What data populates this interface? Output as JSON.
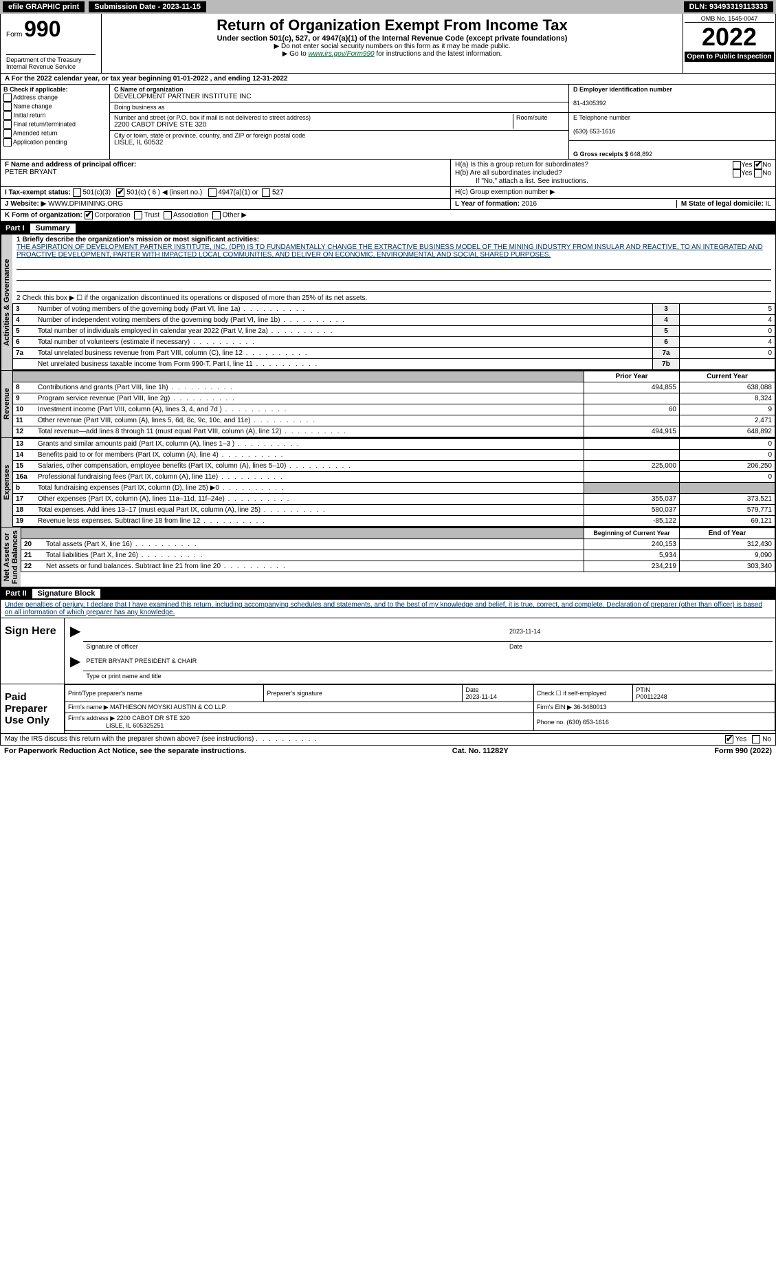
{
  "topbar": {
    "efile": "efile GRAPHIC print",
    "submission_label": "Submission Date - 2023-11-15",
    "dln": "DLN: 93493319113333"
  },
  "header": {
    "form_prefix": "Form",
    "form_number": "990",
    "title": "Return of Organization Exempt From Income Tax",
    "subtitle": "Under section 501(c), 527, or 4947(a)(1) of the Internal Revenue Code (except private foundations)",
    "note1": "▶ Do not enter social security numbers on this form as it may be made public.",
    "note2_prefix": "▶ Go to ",
    "note2_link": "www.irs.gov/Form990",
    "note2_suffix": " for instructions and the latest information.",
    "dept": "Department of the Treasury\nInternal Revenue Service",
    "omb": "OMB No. 1545-0047",
    "year": "2022",
    "open_inspection": "Open to Public Inspection"
  },
  "row_a": "A For the 2022 calendar year, or tax year beginning 01-01-2022    , and ending 12-31-2022",
  "col_b": {
    "header": "B Check if applicable:",
    "items": [
      "Address change",
      "Name change",
      "Initial return",
      "Final return/terminated",
      "Amended return",
      "Application pending"
    ]
  },
  "section_c": {
    "name_label": "C Name of organization",
    "name": "DEVELOPMENT PARTNER INSTITUTE INC",
    "dba_label": "Doing business as",
    "dba": "",
    "addr_label": "Number and street (or P.O. box if mail is not delivered to street address)",
    "room_label": "Room/suite",
    "addr": "2200 CABOT DRIVE STE 320",
    "city_label": "City or town, state or province, country, and ZIP or foreign postal code",
    "city": "LISLE, IL  60532"
  },
  "section_d": {
    "ein_label": "D Employer identification number",
    "ein": "81-4305392",
    "phone_label": "E Telephone number",
    "phone": "(630) 653-1616",
    "gross_label": "G Gross receipts $",
    "gross": "648,892"
  },
  "section_f": {
    "label": "F  Name and address of principal officer:",
    "name": "PETER BRYANT"
  },
  "section_h": {
    "a": "H(a)  Is this a group return for subordinates?",
    "b": "H(b)  Are all subordinates included?",
    "b_note": "If \"No,\" attach a list. See instructions.",
    "c": "H(c)  Group exemption number ▶",
    "yes": "Yes",
    "no": "No"
  },
  "section_i": {
    "label": "I   Tax-exempt status:",
    "opts": [
      "501(c)(3)",
      "501(c) ( 6 ) ◀ (insert no.)",
      "4947(a)(1) or",
      "527"
    ]
  },
  "section_j": {
    "label": "J   Website: ▶",
    "value": "WWW.DPIMINING.ORG"
  },
  "section_k": {
    "label": "K Form of organization:",
    "opts": [
      "Corporation",
      "Trust",
      "Association",
      "Other ▶"
    ]
  },
  "section_l": {
    "label": "L Year of formation:",
    "value": "2016"
  },
  "section_m": {
    "label": "M State of legal domicile:",
    "value": "IL"
  },
  "part1": {
    "title": "Part I",
    "subtitle": "Summary"
  },
  "summary": {
    "line1_label": "1  Briefly describe the organization's mission or most significant activities:",
    "line1_text": "THE ASPIRATION OF DEVELOPMENT PARTNER INSTITUTE, INC. (DPI) IS TO FUNDAMENTALLY CHANGE THE EXTRACTIVE BUSINESS MODEL OF THE MINING INDUSTRY FROM INSULAR AND REACTIVE, TO AN INTEGRATED AND PROACTIVE DEVELOPMENT, PARTER WITH IMPACTED LOCAL COMMUNITIES, AND DELIVER ON ECONOMIC, ENVIRONMENTAL AND SOCIAL SHARED PURPOSES.",
    "line2": "2    Check this box ▶ ☐  if the organization discontinued its operations or disposed of more than 25% of its net assets.",
    "rows_ag": [
      {
        "n": "3",
        "desc": "Number of voting members of the governing body (Part VI, line 1a)",
        "box": "3",
        "val": "5"
      },
      {
        "n": "4",
        "desc": "Number of independent voting members of the governing body (Part VI, line 1b)",
        "box": "4",
        "val": "4"
      },
      {
        "n": "5",
        "desc": "Total number of individuals employed in calendar year 2022 (Part V, line 2a)",
        "box": "5",
        "val": "0"
      },
      {
        "n": "6",
        "desc": "Total number of volunteers (estimate if necessary)",
        "box": "6",
        "val": "4"
      },
      {
        "n": "7a",
        "desc": "Total unrelated business revenue from Part VIII, column (C), line 12",
        "box": "7a",
        "val": "0"
      },
      {
        "n": "",
        "desc": "Net unrelated business taxable income from Form 990-T, Part I, line 11",
        "box": "7b",
        "val": ""
      }
    ],
    "col_headers": {
      "prior": "Prior Year",
      "current": "Current Year"
    },
    "revenue_label": "Revenue",
    "revenue": [
      {
        "n": "8",
        "desc": "Contributions and grants (Part VIII, line 1h)",
        "prior": "494,855",
        "curr": "638,088"
      },
      {
        "n": "9",
        "desc": "Program service revenue (Part VIII, line 2g)",
        "prior": "",
        "curr": "8,324"
      },
      {
        "n": "10",
        "desc": "Investment income (Part VIII, column (A), lines 3, 4, and 7d )",
        "prior": "60",
        "curr": "9"
      },
      {
        "n": "11",
        "desc": "Other revenue (Part VIII, column (A), lines 5, 6d, 8c, 9c, 10c, and 11e)",
        "prior": "",
        "curr": "2,471"
      },
      {
        "n": "12",
        "desc": "Total revenue—add lines 8 through 11 (must equal Part VIII, column (A), line 12)",
        "prior": "494,915",
        "curr": "648,892"
      }
    ],
    "expenses_label": "Expenses",
    "expenses": [
      {
        "n": "13",
        "desc": "Grants and similar amounts paid (Part IX, column (A), lines 1–3 )",
        "prior": "",
        "curr": "0"
      },
      {
        "n": "14",
        "desc": "Benefits paid to or for members (Part IX, column (A), line 4)",
        "prior": "",
        "curr": "0"
      },
      {
        "n": "15",
        "desc": "Salaries, other compensation, employee benefits (Part IX, column (A), lines 5–10)",
        "prior": "225,000",
        "curr": "206,250"
      },
      {
        "n": "16a",
        "desc": "Professional fundraising fees (Part IX, column (A), line 11e)",
        "prior": "",
        "curr": "0"
      },
      {
        "n": "b",
        "desc": "Total fundraising expenses (Part IX, column (D), line 25) ▶0",
        "prior": "shaded",
        "curr": "shaded"
      },
      {
        "n": "17",
        "desc": "Other expenses (Part IX, column (A), lines 11a–11d, 11f–24e)",
        "prior": "355,037",
        "curr": "373,521"
      },
      {
        "n": "18",
        "desc": "Total expenses. Add lines 13–17 (must equal Part IX, column (A), line 25)",
        "prior": "580,037",
        "curr": "579,771"
      },
      {
        "n": "19",
        "desc": "Revenue less expenses. Subtract line 18 from line 12",
        "prior": "-85,122",
        "curr": "69,121"
      }
    ],
    "netassets_label": "Net Assets or\nFund Balances",
    "netassets_headers": {
      "begin": "Beginning of Current Year",
      "end": "End of Year"
    },
    "netassets": [
      {
        "n": "20",
        "desc": "Total assets (Part X, line 16)",
        "prior": "240,153",
        "curr": "312,430"
      },
      {
        "n": "21",
        "desc": "Total liabilities (Part X, line 26)",
        "prior": "5,934",
        "curr": "9,090"
      },
      {
        "n": "22",
        "desc": "Net assets or fund balances. Subtract line 21 from line 20",
        "prior": "234,219",
        "curr": "303,340"
      }
    ],
    "ag_label": "Activities & Governance"
  },
  "part2": {
    "title": "Part II",
    "subtitle": "Signature Block",
    "declaration": "Under penalties of perjury, I declare that I have examined this return, including accompanying schedules and statements, and to the best of my knowledge and belief, it is true, correct, and complete. Declaration of preparer (other than officer) is based on all information of which preparer has any knowledge."
  },
  "sign": {
    "label": "Sign Here",
    "sig_officer": "Signature of officer",
    "date": "2023-11-14",
    "date_label": "Date",
    "name_title": "PETER BRYANT PRESIDENT & CHAIR",
    "type_label": "Type or print name and title"
  },
  "paid": {
    "label": "Paid Preparer Use Only",
    "h1": "Print/Type preparer's name",
    "h2": "Preparer's signature",
    "h3": "Date",
    "h3v": "2023-11-14",
    "h4": "Check ☐ if self-employed",
    "h5": "PTIN",
    "h5v": "P00112248",
    "firm_name_label": "Firm's name    ▶",
    "firm_name": "MATHIESON MOYSKI AUSTIN & CO LLP",
    "firm_ein_label": "Firm's EIN ▶",
    "firm_ein": "36-3480013",
    "firm_addr_label": "Firm's address ▶",
    "firm_addr": "2200 CABOT DR STE 320",
    "firm_addr2": "LISLE, IL  605325251",
    "phone_label": "Phone no.",
    "phone": "(630) 653-1616",
    "discuss": "May the IRS discuss this return with the preparer shown above? (see instructions)",
    "yes": "Yes",
    "no": "No"
  },
  "footer": {
    "paperwork": "For Paperwork Reduction Act Notice, see the separate instructions.",
    "catno": "Cat. No. 11282Y",
    "form": "Form 990 (2022)"
  }
}
